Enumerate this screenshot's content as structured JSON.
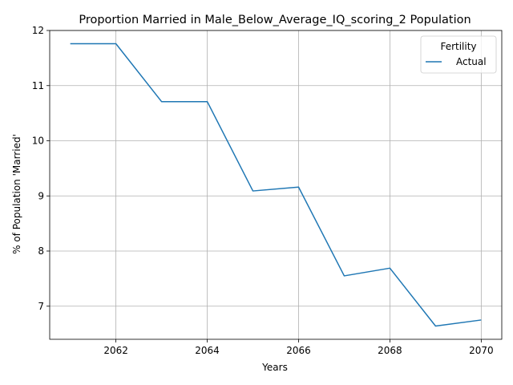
{
  "chart_data": {
    "type": "line",
    "title": "Proportion Married in Male_Below_Average_IQ_scoring_2 Population",
    "xlabel": "Years",
    "ylabel": "% of Population 'Married'",
    "x": [
      2061,
      2062,
      2063,
      2064,
      2065,
      2066,
      2067,
      2068,
      2069,
      2070
    ],
    "series": [
      {
        "name": "Actual",
        "color": "#1f77b4",
        "values": [
          11.76,
          11.76,
          10.71,
          10.71,
          9.09,
          9.16,
          7.55,
          7.69,
          6.64,
          6.75
        ]
      }
    ],
    "xlim": [
      2060.55,
      2070.45
    ],
    "ylim": [
      6.4,
      12.0
    ],
    "xticks": [
      2062,
      2064,
      2066,
      2068,
      2070
    ],
    "yticks": [
      7,
      8,
      9,
      10,
      11,
      12
    ],
    "grid": true,
    "legend": {
      "title": "Fertility",
      "position": "top-right"
    }
  }
}
